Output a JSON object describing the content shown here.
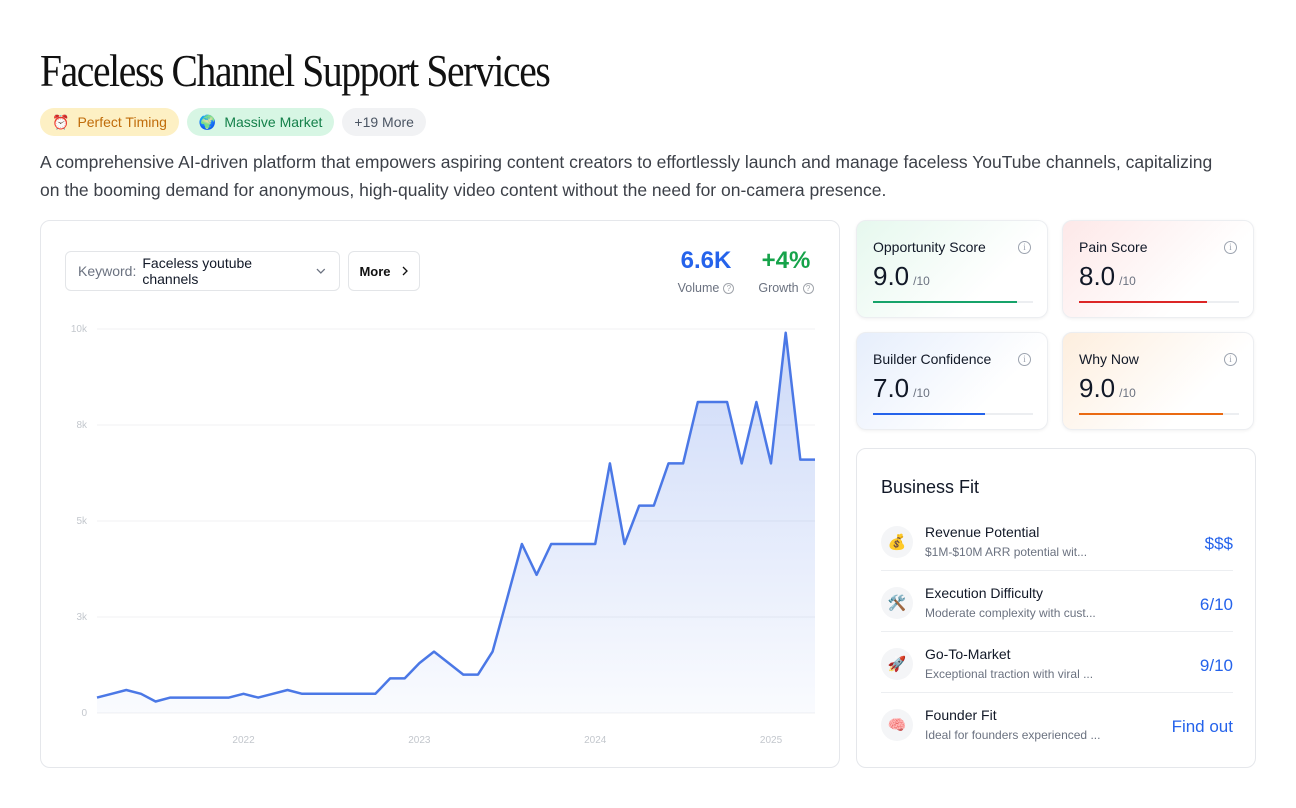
{
  "page": {
    "title": "Faceless Channel Support Services",
    "description": "A comprehensive AI-driven platform that empowers aspiring content creators to effortlessly launch and manage faceless YouTube channels, capitalizing on the booming demand for anonymous, high-quality video content without the need for on-camera presence."
  },
  "badges": [
    {
      "icon": "⏰",
      "icon_name": "alarm-clock-icon",
      "label": "Perfect Timing"
    },
    {
      "icon": "🌍",
      "icon_name": "globe-icon",
      "label": "Massive Market"
    },
    {
      "label": "+19 More"
    }
  ],
  "keyword": {
    "label": "Keyword:",
    "value": "Faceless youtube channels",
    "more_label": "More"
  },
  "metrics": {
    "volume": {
      "value": "6.6K",
      "label": "Volume",
      "color": "#2563eb"
    },
    "growth": {
      "value": "+4%",
      "label": "Growth",
      "color": "#16a34a"
    }
  },
  "chart_data": {
    "type": "area",
    "y_ticks": [
      "0",
      "3k",
      "5k",
      "8k",
      "10k"
    ],
    "x_ticks": [
      "2022",
      "2023",
      "2024",
      "2025"
    ],
    "ylim": [
      0,
      10000
    ],
    "x_range": [
      "2021-03",
      "2025-04"
    ],
    "series": [
      {
        "x": [
          "2021-03",
          "2021-04",
          "2021-05",
          "2021-06",
          "2021-07",
          "2021-08",
          "2021-09",
          "2021-10",
          "2021-11",
          "2021-12",
          "2022-01",
          "2022-02",
          "2022-03",
          "2022-04",
          "2022-05",
          "2022-06",
          "2022-07",
          "2022-08",
          "2022-09",
          "2022-10",
          "2022-11",
          "2022-12",
          "2023-01",
          "2023-02",
          "2023-03",
          "2023-04",
          "2023-05",
          "2023-06",
          "2023-07",
          "2023-08",
          "2023-09",
          "2023-10",
          "2023-11",
          "2023-12",
          "2024-01",
          "2024-02",
          "2024-03",
          "2024-04",
          "2024-05",
          "2024-06",
          "2024-07",
          "2024-08",
          "2024-09",
          "2024-10",
          "2024-11",
          "2024-12",
          "2025-01",
          "2025-02",
          "2025-03",
          "2025-04"
        ],
        "values": [
          400,
          500,
          600,
          500,
          300,
          400,
          400,
          400,
          400,
          400,
          500,
          400,
          500,
          600,
          500,
          500,
          500,
          500,
          500,
          500,
          900,
          900,
          1300,
          1600,
          1300,
          1000,
          1000,
          1600,
          3000,
          4400,
          3600,
          4400,
          4400,
          4400,
          4400,
          6500,
          4400,
          5400,
          5400,
          6500,
          6500,
          8100,
          8100,
          8100,
          6500,
          8100,
          6500,
          9900,
          6600,
          6600
        ],
        "color": "#4b78e6"
      }
    ]
  },
  "scores": [
    {
      "label": "Opportunity Score",
      "value": "9.0",
      "max": "/10",
      "fraction": 0.9,
      "color": "#16a36a"
    },
    {
      "label": "Pain Score",
      "value": "8.0",
      "max": "/10",
      "fraction": 0.8,
      "color": "#dc2626"
    },
    {
      "label": "Builder Confidence",
      "value": "7.0",
      "max": "/10",
      "fraction": 0.7,
      "color": "#2563eb"
    },
    {
      "label": "Why Now",
      "value": "9.0",
      "max": "/10",
      "fraction": 0.9,
      "color": "#ea6a12"
    }
  ],
  "business_fit": {
    "title": "Business Fit",
    "rows": [
      {
        "icon": "💰",
        "icon_name": "money-bag-icon",
        "name": "Revenue Potential",
        "desc": "$1M-$10M ARR potential wit...",
        "value": "$$$"
      },
      {
        "icon": "🛠️",
        "icon_name": "tools-icon",
        "name": "Execution Difficulty",
        "desc": "Moderate complexity with cust...",
        "value": "6/10"
      },
      {
        "icon": "🚀",
        "icon_name": "rocket-icon",
        "name": "Go-To-Market",
        "desc": "Exceptional traction with viral ...",
        "value": "9/10"
      },
      {
        "icon": "🧠",
        "icon_name": "brain-icon",
        "name": "Founder Fit",
        "desc": "Ideal for founders experienced ...",
        "value": "Find out"
      }
    ]
  }
}
